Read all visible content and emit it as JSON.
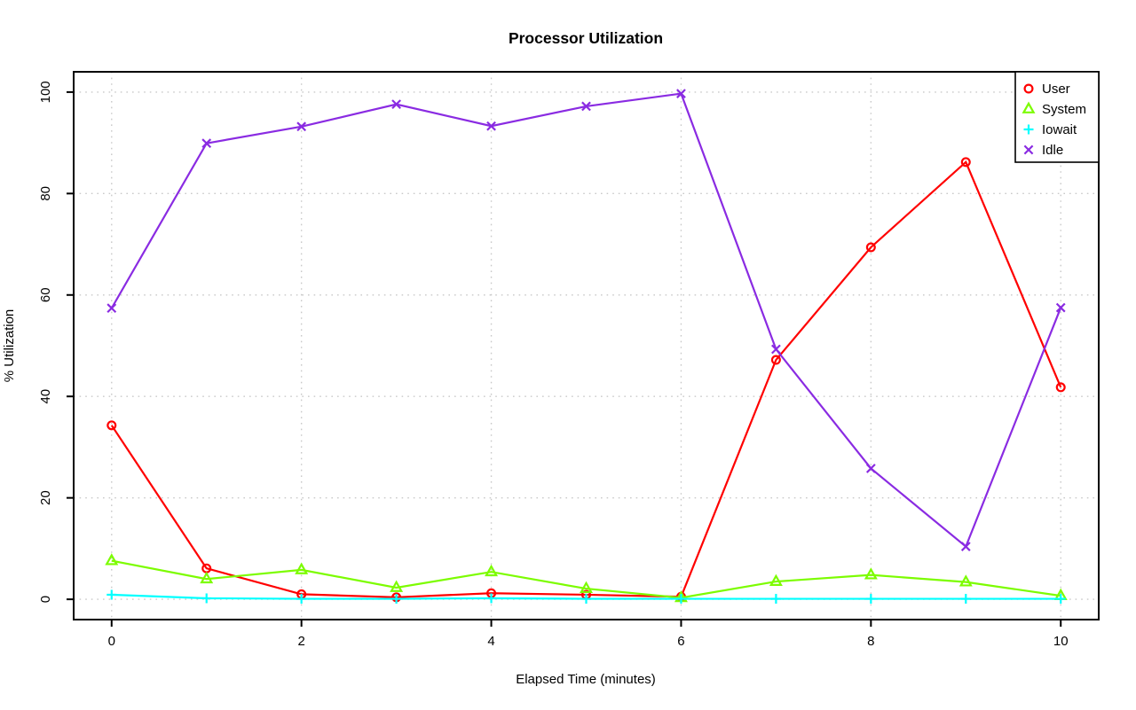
{
  "chart_data": {
    "type": "line",
    "title": "Processor Utilization",
    "xlabel": "Elapsed Time (minutes)",
    "ylabel": "% Utilization",
    "xlim": [
      0,
      10
    ],
    "ylim": [
      0,
      100
    ],
    "xticks": [
      0,
      2,
      4,
      6,
      8,
      10
    ],
    "yticks": [
      0,
      20,
      40,
      60,
      80,
      100
    ],
    "grid": "dotted-lightgray-at-ticks",
    "grid_color": "#c9c9c9",
    "legend_position": "top-right",
    "x": [
      0,
      1,
      2,
      3,
      4,
      5,
      6,
      7,
      8,
      9,
      10
    ],
    "series": [
      {
        "name": "User",
        "color": "#ff0000",
        "marker": "circle",
        "values": [
          34.3,
          6.1,
          1.0,
          0.4,
          1.2,
          0.9,
          0.5,
          47.2,
          69.4,
          86.2,
          41.8
        ]
      },
      {
        "name": "System",
        "color": "#7cfc00",
        "marker": "triangle",
        "values": [
          7.6,
          4.0,
          5.8,
          2.3,
          5.4,
          2.1,
          0.3,
          3.5,
          4.8,
          3.4,
          0.7
        ]
      },
      {
        "name": "Iowait",
        "color": "#00ffff",
        "marker": "plus",
        "values": [
          0.9,
          0.2,
          0.1,
          0.1,
          0.2,
          0.1,
          0.1,
          0.1,
          0.1,
          0.1,
          0.1
        ]
      },
      {
        "name": "Idle",
        "color": "#8a2be2",
        "marker": "x",
        "values": [
          57.4,
          89.9,
          93.2,
          97.6,
          93.3,
          97.2,
          99.7,
          49.3,
          25.8,
          10.4,
          57.5
        ]
      }
    ]
  }
}
